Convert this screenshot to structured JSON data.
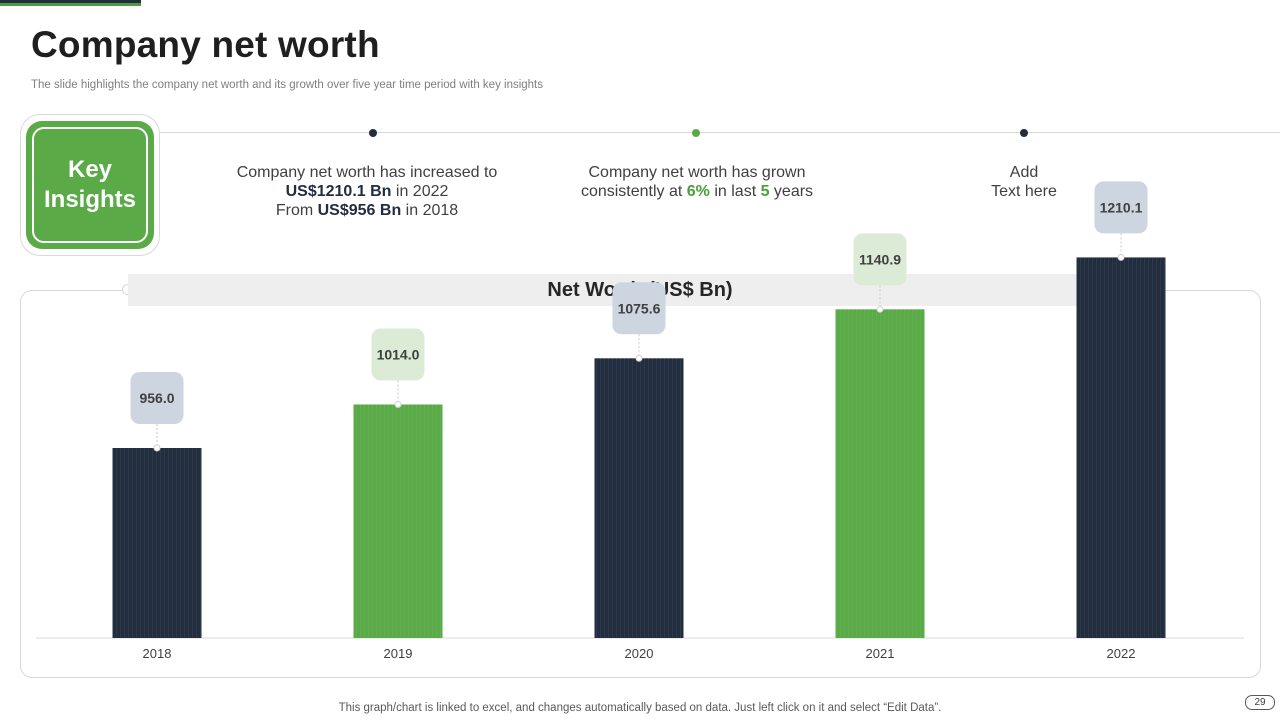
{
  "slide": {
    "title": "Company net worth",
    "subtitle": "The slide highlights the company net worth and its growth over five year time period with key insights",
    "footer_note": "This graph/chart is linked to excel,  and changes automatically based on data. Just left click on it and select “Edit Data”.",
    "page_number": "29"
  },
  "key_insights": {
    "badge_label": "Key Insights",
    "items": [
      {
        "line1": "Company net worth has increased to",
        "amount_2022": "US$1210.1 Bn",
        "in_2022": " in 2022",
        "from": "From ",
        "amount_2018": "US$956 Bn",
        "in_2018": " in 2018"
      },
      {
        "pre": "Company net worth has grown",
        "consistently": "consistently  at ",
        "pct": "6%",
        "mid": " in last ",
        "years_num": "5",
        "post": " years"
      },
      {
        "line1": "Add",
        "line2": "Text here"
      }
    ]
  },
  "colors": {
    "navy": "#222d3f",
    "green": "#5aaa47",
    "label_grey": "#ccd5e0",
    "label_green": "#dcebd6"
  },
  "chart_data": {
    "type": "bar",
    "title": "Net Worth (US$ Bn)",
    "categories": [
      "2018",
      "2019",
      "2020",
      "2021",
      "2022"
    ],
    "values": [
      956.0,
      1014.0,
      1075.6,
      1140.9,
      1210.1
    ],
    "value_labels": [
      "956.0",
      "1014.0",
      "1075.6",
      "1140.9",
      "1210.1"
    ],
    "bar_colors": [
      "navy",
      "green",
      "navy",
      "green",
      "navy"
    ],
    "xlabel": "",
    "ylabel": "",
    "ylim": [
      0,
      1400
    ],
    "grid": false
  }
}
